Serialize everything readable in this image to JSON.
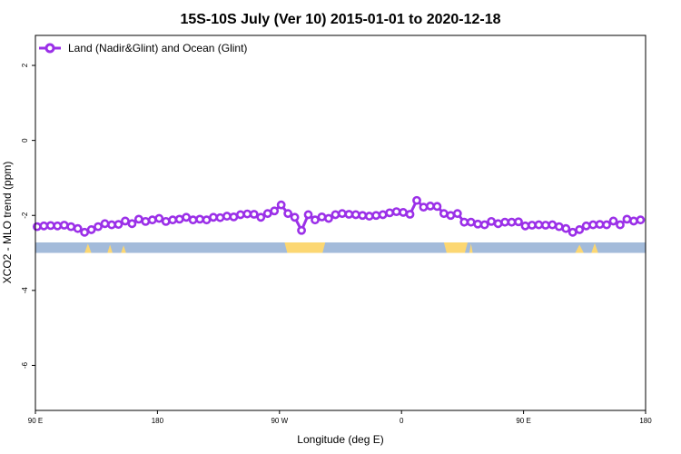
{
  "chart_data": {
    "type": "line",
    "title": "15S-10S July (Ver 10)   2015-01-01 to 2020-12-18",
    "xlabel": "Longitude (deg E)",
    "ylabel": "XCO2 - MLO trend (ppm)",
    "xlim": [
      90,
      450
    ],
    "ylim": [
      -7.2,
      2.8
    ],
    "x_ticks": [
      {
        "value": 90,
        "label": "90 E"
      },
      {
        "value": 162,
        "label": "180"
      },
      {
        "value": 234,
        "label": "90 W"
      },
      {
        "value": 306,
        "label": "0"
      },
      {
        "value": 378,
        "label": "90 E"
      },
      {
        "value": 450,
        "label": "180"
      }
    ],
    "y_ticks": [
      {
        "value": 2,
        "label": "2"
      },
      {
        "value": 0,
        "label": "0"
      },
      {
        "value": -2,
        "label": "-2"
      },
      {
        "value": -4,
        "label": "-4"
      },
      {
        "value": -6,
        "label": "-6"
      }
    ],
    "legend_position": "top-left",
    "grid": false,
    "series": [
      {
        "name": "Land (Nadir&Glint) and Ocean (Glint)",
        "color": "#9B30E8",
        "x": [
          91,
          95,
          99,
          103,
          107,
          111,
          115,
          119,
          123,
          127,
          131,
          135,
          139,
          143,
          147,
          151,
          155,
          159,
          163,
          167,
          171,
          175,
          179,
          183,
          187,
          191,
          195,
          199,
          203,
          207,
          211,
          215,
          219,
          223,
          227,
          231,
          235,
          239,
          243,
          247,
          251,
          255,
          259,
          263,
          267,
          271,
          275,
          279,
          283,
          287,
          291,
          295,
          299,
          303,
          307,
          311,
          315,
          319,
          323,
          327,
          331,
          335,
          339,
          343,
          347,
          351,
          355,
          359,
          363,
          367,
          371,
          375,
          379,
          383,
          387,
          391,
          395,
          399,
          403,
          407,
          411,
          415,
          419,
          423,
          427,
          431,
          435,
          439,
          443,
          447
        ],
        "y": [
          -2.3,
          -2.28,
          -2.27,
          -2.28,
          -2.26,
          -2.3,
          -2.35,
          -2.45,
          -2.38,
          -2.3,
          -2.22,
          -2.25,
          -2.24,
          -2.15,
          -2.22,
          -2.1,
          -2.16,
          -2.12,
          -2.08,
          -2.16,
          -2.12,
          -2.1,
          -2.05,
          -2.12,
          -2.1,
          -2.12,
          -2.05,
          -2.06,
          -2.02,
          -2.04,
          -1.98,
          -1.96,
          -1.97,
          -2.05,
          -1.95,
          -1.88,
          -1.72,
          -1.95,
          -2.05,
          -2.4,
          -1.98,
          -2.12,
          -2.04,
          -2.08,
          -1.98,
          -1.95,
          -1.97,
          -1.98,
          -2.0,
          -2.02,
          -2.0,
          -1.98,
          -1.93,
          -1.9,
          -1.92,
          -1.97,
          -1.6,
          -1.78,
          -1.75,
          -1.76,
          -1.95,
          -2.0,
          -1.95,
          -2.18,
          -2.18,
          -2.23,
          -2.25,
          -2.16,
          -2.22,
          -2.18,
          -2.18,
          -2.17,
          -2.28,
          -2.26,
          -2.25,
          -2.26,
          -2.25,
          -2.3,
          -2.35,
          -2.45,
          -2.38,
          -2.28,
          -2.25,
          -2.24,
          -2.25,
          -2.15,
          -2.25,
          -2.1,
          -2.15,
          -2.12
        ]
      }
    ],
    "background_band": {
      "y_top": -2.72,
      "y_bottom": -3.0,
      "ocean_color": "#A3BBDA",
      "land_color": "#FCD772",
      "land_segments": [
        {
          "x_start": 237,
          "x_end": 261
        },
        {
          "x_start": 331,
          "x_end": 345
        }
      ],
      "land_bumps": [
        {
          "x_center": 121,
          "width": 4,
          "height": 0.25
        },
        {
          "x_center": 134,
          "width": 3,
          "height": 0.22
        },
        {
          "x_center": 142,
          "width": 3,
          "height": 0.2
        },
        {
          "x_center": 347,
          "width": 2,
          "height": 0.25
        },
        {
          "x_center": 411,
          "width": 5,
          "height": 0.22
        },
        {
          "x_center": 420,
          "width": 4,
          "height": 0.26
        }
      ]
    }
  }
}
